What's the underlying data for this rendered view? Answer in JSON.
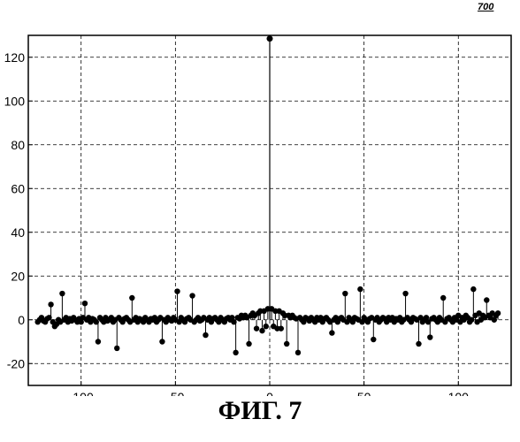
{
  "figure_ref": "700",
  "caption": "ФИГ. 7",
  "chart_data": {
    "type": "scatter",
    "style": "stem",
    "xlim": [
      -128,
      128
    ],
    "ylim": [
      -30,
      130
    ],
    "xticks": [
      -100,
      -50,
      0,
      50,
      100
    ],
    "yticks": [
      -20,
      0,
      20,
      40,
      60,
      80,
      100,
      120
    ],
    "grid": "dashed",
    "peak": {
      "x": 0,
      "y": 128.5
    },
    "points": [
      [
        -123,
        -1
      ],
      [
        -122,
        0
      ],
      [
        -121,
        1
      ],
      [
        -120,
        -0.5
      ],
      [
        -119,
        -1
      ],
      [
        -118,
        0.5
      ],
      [
        -117,
        1
      ],
      [
        -116,
        7
      ],
      [
        -115,
        -1
      ],
      [
        -114,
        -3
      ],
      [
        -113,
        -2
      ],
      [
        -112,
        0
      ],
      [
        -111,
        -1
      ],
      [
        -110,
        12
      ],
      [
        -109,
        0
      ],
      [
        -108,
        1
      ],
      [
        -107,
        -1
      ],
      [
        -106,
        0.5
      ],
      [
        -105,
        -0.5
      ],
      [
        -104,
        1
      ],
      [
        -103,
        0
      ],
      [
        -102,
        -1
      ],
      [
        -101,
        0.5
      ],
      [
        -100,
        -1
      ],
      [
        -99,
        1
      ],
      [
        -98,
        7.5
      ],
      [
        -97,
        0
      ],
      [
        -96,
        1
      ],
      [
        -95,
        -1
      ],
      [
        -94,
        0.5
      ],
      [
        -93,
        0
      ],
      [
        -92,
        -1
      ],
      [
        -91,
        -10
      ],
      [
        -90,
        1
      ],
      [
        -89,
        0
      ],
      [
        -88,
        -1
      ],
      [
        -87,
        1
      ],
      [
        -86,
        -0.5
      ],
      [
        -85,
        0
      ],
      [
        -84,
        1
      ],
      [
        -83,
        -1
      ],
      [
        -82,
        0
      ],
      [
        -81,
        -13
      ],
      [
        -80,
        1
      ],
      [
        -79,
        0
      ],
      [
        -78,
        -1
      ],
      [
        -77,
        0.5
      ],
      [
        -76,
        1
      ],
      [
        -75,
        0
      ],
      [
        -74,
        -1
      ],
      [
        -73,
        10
      ],
      [
        -72,
        0
      ],
      [
        -71,
        1
      ],
      [
        -70,
        -1
      ],
      [
        -69,
        0.5
      ],
      [
        -68,
        0
      ],
      [
        -67,
        -1
      ],
      [
        -66,
        1
      ],
      [
        -65,
        0
      ],
      [
        -64,
        -1
      ],
      [
        -63,
        0.5
      ],
      [
        -62,
        0
      ],
      [
        -61,
        1
      ],
      [
        -60,
        -1
      ],
      [
        -59,
        0
      ],
      [
        -58,
        1
      ],
      [
        -57,
        -10
      ],
      [
        -56,
        0
      ],
      [
        -55,
        -1
      ],
      [
        -54,
        1
      ],
      [
        -53,
        0
      ],
      [
        -52,
        -0.5
      ],
      [
        -51,
        1
      ],
      [
        -50,
        0
      ],
      [
        -49,
        13
      ],
      [
        -48,
        -1
      ],
      [
        -47,
        1
      ],
      [
        -46,
        0
      ],
      [
        -45,
        -1
      ],
      [
        -44,
        0.5
      ],
      [
        -43,
        1
      ],
      [
        -42,
        0
      ],
      [
        -41,
        11
      ],
      [
        -40,
        -1
      ],
      [
        -39,
        0
      ],
      [
        -38,
        1
      ],
      [
        -37,
        -0.5
      ],
      [
        -36,
        0
      ],
      [
        -35,
        1
      ],
      [
        -34,
        -7
      ],
      [
        -33,
        0
      ],
      [
        -32,
        1
      ],
      [
        -31,
        -1
      ],
      [
        -30,
        0.5
      ],
      [
        -29,
        1
      ],
      [
        -28,
        0
      ],
      [
        -27,
        -1
      ],
      [
        -26,
        1
      ],
      [
        -25,
        0
      ],
      [
        -24,
        -1
      ],
      [
        -23,
        0.5
      ],
      [
        -22,
        1
      ],
      [
        -21,
        0
      ],
      [
        -20,
        1
      ],
      [
        -19,
        -1
      ],
      [
        -18,
        -15
      ],
      [
        -17,
        1
      ],
      [
        -16,
        0.5
      ],
      [
        -15,
        2
      ],
      [
        -14,
        1
      ],
      [
        -13,
        2
      ],
      [
        -12,
        1
      ],
      [
        -11,
        -11
      ],
      [
        -10,
        2
      ],
      [
        -9,
        3
      ],
      [
        -8,
        2
      ],
      [
        -7,
        -4
      ],
      [
        -6,
        3
      ],
      [
        -5,
        4
      ],
      [
        -4,
        -5
      ],
      [
        -3,
        4
      ],
      [
        -2,
        -3
      ],
      [
        -1,
        5
      ],
      [
        1,
        5
      ],
      [
        2,
        -3
      ],
      [
        3,
        4
      ],
      [
        4,
        -4
      ],
      [
        5,
        4
      ],
      [
        6,
        -4
      ],
      [
        7,
        3
      ],
      [
        8,
        2
      ],
      [
        9,
        -11
      ],
      [
        10,
        2
      ],
      [
        11,
        1
      ],
      [
        12,
        2
      ],
      [
        13,
        1
      ],
      [
        14,
        0.5
      ],
      [
        15,
        -15
      ],
      [
        16,
        1
      ],
      [
        17,
        0
      ],
      [
        18,
        -1
      ],
      [
        19,
        1
      ],
      [
        20,
        0.5
      ],
      [
        21,
        -0.5
      ],
      [
        22,
        1
      ],
      [
        23,
        0
      ],
      [
        24,
        -1
      ],
      [
        25,
        1
      ],
      [
        26,
        0
      ],
      [
        27,
        1
      ],
      [
        28,
        -1
      ],
      [
        29,
        0.5
      ],
      [
        30,
        1
      ],
      [
        31,
        0
      ],
      [
        32,
        -1
      ],
      [
        33,
        -6
      ],
      [
        34,
        0
      ],
      [
        35,
        1
      ],
      [
        36,
        -1
      ],
      [
        37,
        0.5
      ],
      [
        38,
        1
      ],
      [
        39,
        0
      ],
      [
        40,
        12
      ],
      [
        41,
        -1
      ],
      [
        42,
        1
      ],
      [
        43,
        0
      ],
      [
        44,
        -1
      ],
      [
        45,
        1
      ],
      [
        46,
        0.5
      ],
      [
        47,
        0
      ],
      [
        48,
        14
      ],
      [
        49,
        -1
      ],
      [
        50,
        1
      ],
      [
        51,
        0
      ],
      [
        52,
        -1
      ],
      [
        53,
        0.5
      ],
      [
        54,
        1
      ],
      [
        55,
        -9
      ],
      [
        56,
        0
      ],
      [
        57,
        1
      ],
      [
        58,
        -1
      ],
      [
        59,
        0
      ],
      [
        60,
        1
      ],
      [
        61,
        0.5
      ],
      [
        62,
        -1
      ],
      [
        63,
        1
      ],
      [
        64,
        0
      ],
      [
        65,
        1
      ],
      [
        66,
        -1
      ],
      [
        67,
        0.5
      ],
      [
        68,
        0
      ],
      [
        69,
        1
      ],
      [
        70,
        -1
      ],
      [
        71,
        0
      ],
      [
        72,
        12
      ],
      [
        73,
        1
      ],
      [
        74,
        0
      ],
      [
        75,
        -1
      ],
      [
        76,
        1
      ],
      [
        77,
        0.5
      ],
      [
        78,
        0
      ],
      [
        79,
        -11
      ],
      [
        80,
        1
      ],
      [
        81,
        -1
      ],
      [
        82,
        0
      ],
      [
        83,
        1
      ],
      [
        84,
        -1
      ],
      [
        85,
        -8
      ],
      [
        86,
        0.5
      ],
      [
        87,
        1
      ],
      [
        88,
        0
      ],
      [
        89,
        -1
      ],
      [
        90,
        1
      ],
      [
        91,
        0
      ],
      [
        92,
        10
      ],
      [
        93,
        -1
      ],
      [
        94,
        0.5
      ],
      [
        95,
        1
      ],
      [
        96,
        0
      ],
      [
        97,
        -1
      ],
      [
        98,
        1
      ],
      [
        99,
        0
      ],
      [
        100,
        2
      ],
      [
        101,
        -1
      ],
      [
        102,
        1
      ],
      [
        103,
        0
      ],
      [
        104,
        2
      ],
      [
        105,
        1
      ],
      [
        106,
        -1
      ],
      [
        107,
        0
      ],
      [
        108,
        14
      ],
      [
        109,
        2
      ],
      [
        110,
        -1
      ],
      [
        111,
        3
      ],
      [
        112,
        0
      ],
      [
        113,
        2
      ],
      [
        114,
        1
      ],
      [
        115,
        9
      ],
      [
        116,
        2
      ],
      [
        117,
        1
      ],
      [
        118,
        3
      ],
      [
        119,
        0
      ],
      [
        120,
        2
      ],
      [
        121,
        3
      ]
    ]
  }
}
